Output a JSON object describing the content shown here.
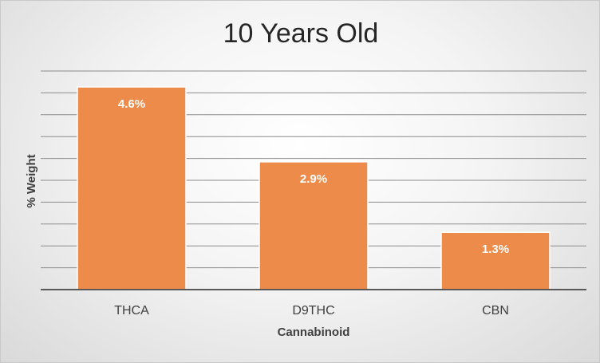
{
  "chart_data": {
    "type": "bar",
    "title": "10 Years Old",
    "xlabel": "Cannabinoid",
    "ylabel": "% Weight",
    "categories": [
      "THCA",
      "D9THC",
      "CBN"
    ],
    "values": [
      4.6,
      2.9,
      1.3
    ],
    "data_labels": [
      "4.6%",
      "2.9%",
      "1.3%"
    ],
    "ylim": [
      0,
      4.6
    ],
    "grid": true,
    "bar_color": "#ED8B4A",
    "bar_border_color": "#FFFFFF",
    "grid_color": "#8C8C8C",
    "legend": "none"
  }
}
